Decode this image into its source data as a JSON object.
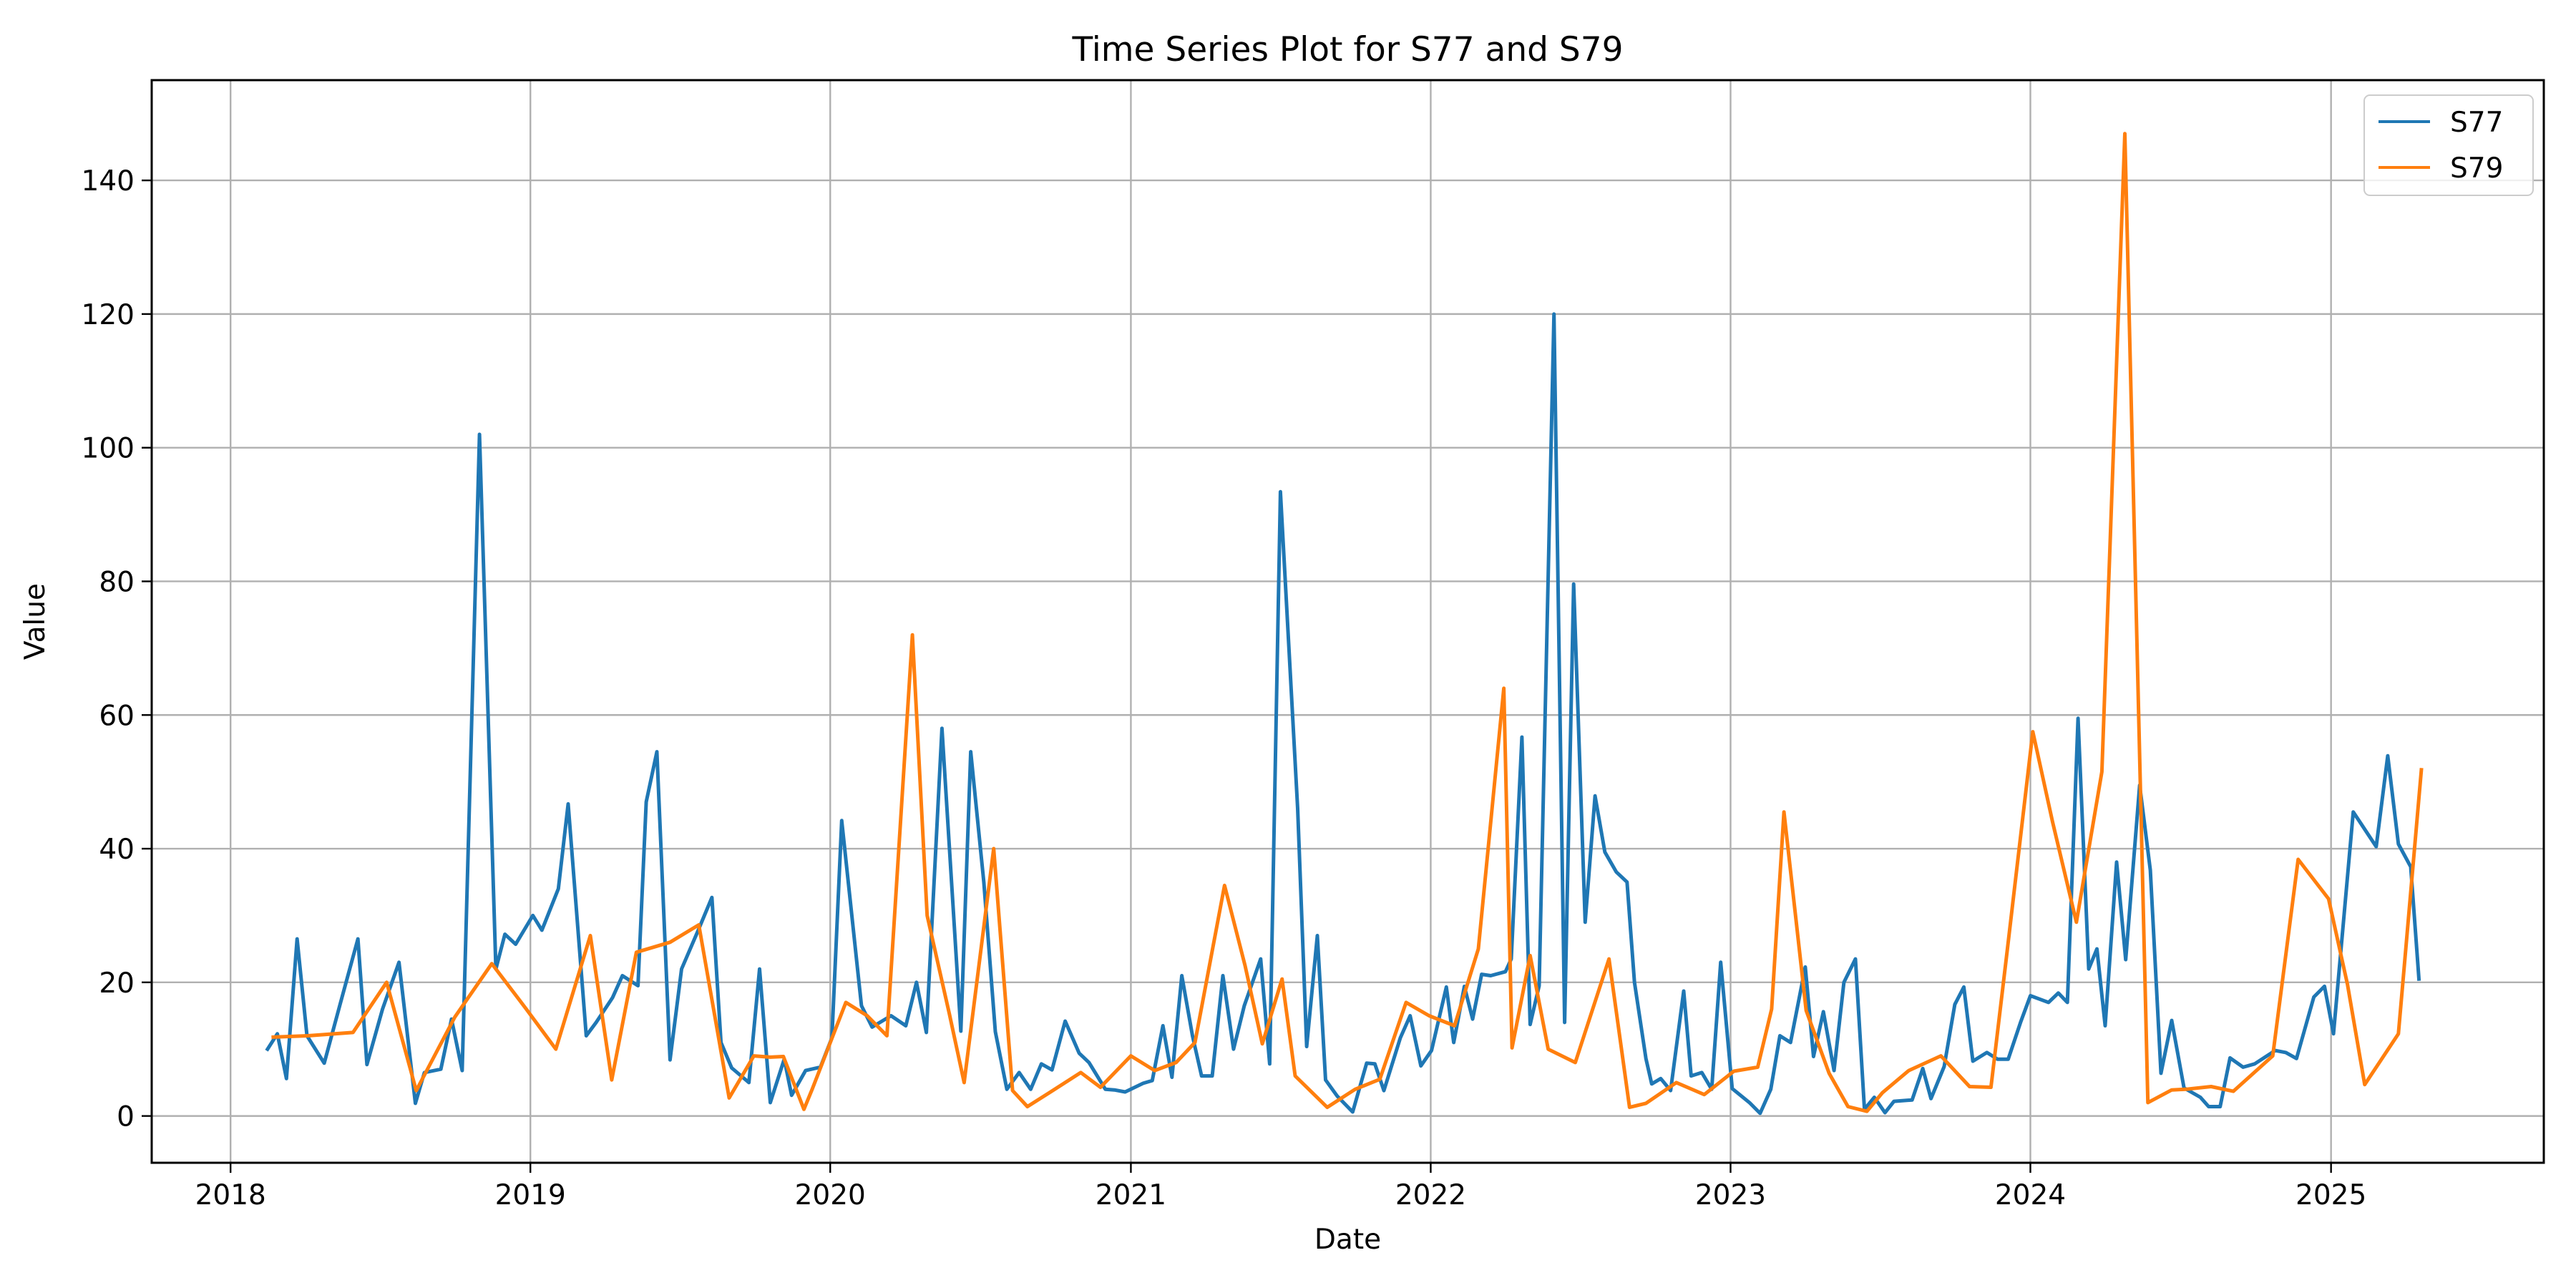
{
  "chart_data": {
    "type": "line",
    "title": "Time Series Plot for S77 and S79",
    "xlabel": "Date",
    "ylabel": "Value",
    "xlim": [
      "2017-09-27",
      "2025-09-17"
    ],
    "ylim": [
      -7,
      155
    ],
    "x_ticks": [
      "2018",
      "2019",
      "2020",
      "2021",
      "2022",
      "2023",
      "2024",
      "2025"
    ],
    "y_ticks": [
      0,
      20,
      40,
      60,
      80,
      100,
      120,
      140
    ],
    "grid": true,
    "legend": {
      "placement": "top-right"
    },
    "series": [
      {
        "name": "S77",
        "color": "#1f77b4",
        "points": [
          [
            "2018-02-15",
            10.0
          ],
          [
            "2018-02-27",
            12.3
          ],
          [
            "2018-03-10",
            5.6
          ],
          [
            "2018-03-23",
            26.5
          ],
          [
            "2018-04-04",
            12.0
          ],
          [
            "2018-04-25",
            7.9
          ],
          [
            "2018-05-15",
            17.0
          ],
          [
            "2018-06-05",
            26.5
          ],
          [
            "2018-06-16",
            7.7
          ],
          [
            "2018-07-05",
            16.0
          ],
          [
            "2018-07-25",
            23.0
          ],
          [
            "2018-08-14",
            1.9
          ],
          [
            "2018-08-25",
            6.5
          ],
          [
            "2018-09-14",
            7.0
          ],
          [
            "2018-09-27",
            14.5
          ],
          [
            "2018-10-10",
            6.8
          ],
          [
            "2018-10-31",
            102.0
          ],
          [
            "2018-11-20",
            22.0
          ],
          [
            "2018-12-01",
            27.2
          ],
          [
            "2018-12-14",
            25.7
          ],
          [
            "2019-01-04",
            30.0
          ],
          [
            "2019-01-15",
            27.8
          ],
          [
            "2019-02-04",
            34.0
          ],
          [
            "2019-02-16",
            46.7
          ],
          [
            "2019-03-10",
            12.0
          ],
          [
            "2019-03-22",
            14.0
          ],
          [
            "2019-04-11",
            17.7
          ],
          [
            "2019-04-23",
            21.0
          ],
          [
            "2019-05-12",
            19.5
          ],
          [
            "2019-05-22",
            47.0
          ],
          [
            "2019-06-04",
            54.5
          ],
          [
            "2019-06-20",
            8.4
          ],
          [
            "2019-07-04",
            22.0
          ],
          [
            "2019-07-25",
            28.0
          ],
          [
            "2019-08-10",
            32.7
          ],
          [
            "2019-08-21",
            11.0
          ],
          [
            "2019-09-03",
            7.2
          ],
          [
            "2019-09-24",
            5.0
          ],
          [
            "2019-10-07",
            22.0
          ],
          [
            "2019-10-20",
            2.0
          ],
          [
            "2019-11-06",
            8.5
          ],
          [
            "2019-11-15",
            3.1
          ],
          [
            "2019-12-02",
            6.8
          ],
          [
            "2019-12-20",
            7.3
          ],
          [
            "2020-01-03",
            11.7
          ],
          [
            "2020-01-15",
            44.2
          ],
          [
            "2020-02-08",
            16.5
          ],
          [
            "2020-02-21",
            13.3
          ],
          [
            "2020-03-15",
            15.0
          ],
          [
            "2020-04-02",
            13.5
          ],
          [
            "2020-04-15",
            20.0
          ],
          [
            "2020-04-27",
            12.5
          ],
          [
            "2020-05-16",
            58.0
          ],
          [
            "2020-06-08",
            12.7
          ],
          [
            "2020-06-20",
            54.5
          ],
          [
            "2020-07-06",
            35.0
          ],
          [
            "2020-07-20",
            12.6
          ],
          [
            "2020-08-03",
            4.0
          ],
          [
            "2020-08-18",
            6.5
          ],
          [
            "2020-09-01",
            4.0
          ],
          [
            "2020-09-14",
            7.8
          ],
          [
            "2020-09-27",
            6.9
          ],
          [
            "2020-10-13",
            14.2
          ],
          [
            "2020-10-30",
            9.4
          ],
          [
            "2020-11-11",
            8.0
          ],
          [
            "2020-12-01",
            4.0
          ],
          [
            "2020-12-12",
            3.9
          ],
          [
            "2020-12-25",
            3.6
          ],
          [
            "2021-01-16",
            4.9
          ],
          [
            "2021-01-27",
            5.3
          ],
          [
            "2021-02-09",
            13.5
          ],
          [
            "2021-02-20",
            5.8
          ],
          [
            "2021-03-04",
            21.0
          ],
          [
            "2021-03-17",
            12.0
          ],
          [
            "2021-03-28",
            6.0
          ],
          [
            "2021-04-10",
            6.0
          ],
          [
            "2021-04-23",
            21.0
          ],
          [
            "2021-05-06",
            10.0
          ],
          [
            "2021-05-19",
            16.5
          ],
          [
            "2021-06-08",
            23.5
          ],
          [
            "2021-06-19",
            7.8
          ],
          [
            "2021-07-02",
            93.4
          ],
          [
            "2021-07-23",
            46.0
          ],
          [
            "2021-08-03",
            10.4
          ],
          [
            "2021-08-16",
            27.0
          ],
          [
            "2021-08-26",
            5.4
          ],
          [
            "2021-09-09",
            3.0
          ],
          [
            "2021-09-28",
            0.6
          ],
          [
            "2021-10-15",
            7.9
          ],
          [
            "2021-10-25",
            7.8
          ],
          [
            "2021-11-05",
            3.8
          ],
          [
            "2021-11-25",
            11.7
          ],
          [
            "2021-12-07",
            15.0
          ],
          [
            "2021-12-20",
            7.5
          ],
          [
            "2022-01-02",
            9.8
          ],
          [
            "2022-01-20",
            19.3
          ],
          [
            "2022-01-29",
            11.0
          ],
          [
            "2022-02-11",
            19.4
          ],
          [
            "2022-02-21",
            14.5
          ],
          [
            "2022-03-04",
            21.2
          ],
          [
            "2022-03-15",
            21.0
          ],
          [
            "2022-04-02",
            21.6
          ],
          [
            "2022-04-09",
            23.5
          ],
          [
            "2022-04-22",
            56.7
          ],
          [
            "2022-05-02",
            13.7
          ],
          [
            "2022-05-13",
            19.5
          ],
          [
            "2022-05-31",
            120.0
          ],
          [
            "2022-06-13",
            14.0
          ],
          [
            "2022-06-24",
            79.6
          ],
          [
            "2022-07-08",
            29.0
          ],
          [
            "2022-07-20",
            47.9
          ],
          [
            "2022-08-01",
            39.5
          ],
          [
            "2022-08-15",
            36.5
          ],
          [
            "2022-08-28",
            35.0
          ],
          [
            "2022-09-06",
            20.0
          ],
          [
            "2022-09-20",
            8.6
          ],
          [
            "2022-09-27",
            4.8
          ],
          [
            "2022-10-08",
            5.6
          ],
          [
            "2022-10-20",
            3.8
          ],
          [
            "2022-11-05",
            18.7
          ],
          [
            "2022-11-14",
            6.0
          ],
          [
            "2022-11-27",
            6.5
          ],
          [
            "2022-12-09",
            4.0
          ],
          [
            "2022-12-20",
            23.0
          ],
          [
            "2023-01-03",
            4.1
          ],
          [
            "2023-01-24",
            2.0
          ],
          [
            "2023-02-06",
            0.4
          ],
          [
            "2023-02-19",
            4.0
          ],
          [
            "2023-03-02",
            12.0
          ],
          [
            "2023-03-15",
            11.0
          ],
          [
            "2023-04-02",
            22.3
          ],
          [
            "2023-04-12",
            8.9
          ],
          [
            "2023-04-24",
            15.6
          ],
          [
            "2023-05-07",
            6.8
          ],
          [
            "2023-05-19",
            20.0
          ],
          [
            "2023-06-02",
            23.5
          ],
          [
            "2023-06-13",
            1.0
          ],
          [
            "2023-06-25",
            2.8
          ],
          [
            "2023-07-08",
            0.5
          ],
          [
            "2023-07-19",
            2.2
          ],
          [
            "2023-08-10",
            2.4
          ],
          [
            "2023-08-23",
            7.1
          ],
          [
            "2023-09-02",
            2.6
          ],
          [
            "2023-09-18",
            7.4
          ],
          [
            "2023-10-01",
            16.7
          ],
          [
            "2023-10-12",
            19.3
          ],
          [
            "2023-10-23",
            8.2
          ],
          [
            "2023-11-09",
            9.5
          ],
          [
            "2023-11-22",
            8.5
          ],
          [
            "2023-12-05",
            8.5
          ],
          [
            "2023-12-20",
            14.0
          ],
          [
            "2024-01-01",
            18.0
          ],
          [
            "2024-01-23",
            17.0
          ],
          [
            "2024-02-04",
            18.4
          ],
          [
            "2024-02-15",
            17.0
          ],
          [
            "2024-02-28",
            59.5
          ],
          [
            "2024-03-12",
            22.0
          ],
          [
            "2024-03-22",
            25.0
          ],
          [
            "2024-04-01",
            13.5
          ],
          [
            "2024-04-15",
            38.0
          ],
          [
            "2024-04-26",
            23.4
          ],
          [
            "2024-05-13",
            49.5
          ],
          [
            "2024-05-26",
            36.8
          ],
          [
            "2024-06-08",
            6.4
          ],
          [
            "2024-06-21",
            14.3
          ],
          [
            "2024-07-06",
            4.2
          ],
          [
            "2024-07-26",
            2.8
          ],
          [
            "2024-08-05",
            1.4
          ],
          [
            "2024-08-19",
            1.4
          ],
          [
            "2024-08-31",
            8.7
          ],
          [
            "2024-09-16",
            7.3
          ],
          [
            "2024-09-30",
            7.8
          ],
          [
            "2024-10-15",
            9.0
          ],
          [
            "2024-10-25",
            9.8
          ],
          [
            "2024-11-07",
            9.5
          ],
          [
            "2024-11-20",
            8.6
          ],
          [
            "2024-12-11",
            17.8
          ],
          [
            "2024-12-24",
            19.4
          ],
          [
            "2025-01-04",
            12.3
          ],
          [
            "2025-01-28",
            45.5
          ],
          [
            "2025-02-25",
            40.3
          ],
          [
            "2025-03-11",
            53.9
          ],
          [
            "2025-03-24",
            40.7
          ],
          [
            "2025-04-08",
            37.3
          ],
          [
            "2025-04-18",
            20.5
          ]
        ]
      },
      {
        "name": "S79",
        "color": "#ff7f0e",
        "points": [
          [
            "2018-02-22",
            11.8
          ],
          [
            "2018-04-05",
            12.0
          ],
          [
            "2018-05-30",
            12.5
          ],
          [
            "2018-07-10",
            20.0
          ],
          [
            "2018-08-15",
            3.8
          ],
          [
            "2018-10-01",
            14.8
          ],
          [
            "2018-11-15",
            22.8
          ],
          [
            "2018-12-27",
            16.0
          ],
          [
            "2019-02-01",
            10.0
          ],
          [
            "2019-03-15",
            27.0
          ],
          [
            "2019-04-10",
            5.4
          ],
          [
            "2019-05-10",
            24.5
          ],
          [
            "2019-06-20",
            26.0
          ],
          [
            "2019-07-25",
            28.6
          ],
          [
            "2019-08-31",
            2.7
          ],
          [
            "2019-09-30",
            9.0
          ],
          [
            "2019-10-20",
            8.8
          ],
          [
            "2019-11-05",
            8.9
          ],
          [
            "2019-11-30",
            1.0
          ],
          [
            "2019-12-10",
            4.0
          ],
          [
            "2020-01-20",
            17.0
          ],
          [
            "2020-02-15",
            15.0
          ],
          [
            "2020-03-10",
            12.0
          ],
          [
            "2020-04-10",
            72.0
          ],
          [
            "2020-04-28",
            30.0
          ],
          [
            "2020-05-25",
            15.3
          ],
          [
            "2020-06-12",
            5.0
          ],
          [
            "2020-07-18",
            40.0
          ],
          [
            "2020-08-10",
            3.8
          ],
          [
            "2020-08-28",
            1.4
          ],
          [
            "2020-09-24",
            3.5
          ],
          [
            "2020-11-01",
            6.5
          ],
          [
            "2020-11-25",
            4.3
          ],
          [
            "2021-01-01",
            9.0
          ],
          [
            "2021-01-30",
            6.8
          ],
          [
            "2021-02-25",
            8.0
          ],
          [
            "2021-03-20",
            11.0
          ],
          [
            "2021-04-25",
            34.5
          ],
          [
            "2021-05-20",
            22.5
          ],
          [
            "2021-06-10",
            10.8
          ],
          [
            "2021-07-04",
            20.5
          ],
          [
            "2021-07-20",
            6.0
          ],
          [
            "2021-08-28",
            1.3
          ],
          [
            "2021-10-01",
            4.0
          ],
          [
            "2021-10-31",
            5.5
          ],
          [
            "2021-12-02",
            17.0
          ],
          [
            "2021-12-30",
            15.0
          ],
          [
            "2022-01-30",
            13.5
          ],
          [
            "2022-02-28",
            25.0
          ],
          [
            "2022-03-31",
            64.0
          ],
          [
            "2022-04-10",
            10.2
          ],
          [
            "2022-05-02",
            24.0
          ],
          [
            "2022-05-24",
            10.0
          ],
          [
            "2022-06-26",
            8.0
          ],
          [
            "2022-08-06",
            23.5
          ],
          [
            "2022-08-31",
            1.3
          ],
          [
            "2022-09-20",
            1.9
          ],
          [
            "2022-10-27",
            5.0
          ],
          [
            "2022-11-30",
            3.2
          ],
          [
            "2023-01-05",
            6.7
          ],
          [
            "2023-02-03",
            7.3
          ],
          [
            "2023-02-20",
            16.0
          ],
          [
            "2023-03-07",
            45.5
          ],
          [
            "2023-04-03",
            15.8
          ],
          [
            "2023-05-01",
            6.4
          ],
          [
            "2023-05-24",
            1.4
          ],
          [
            "2023-06-16",
            0.7
          ],
          [
            "2023-07-05",
            3.5
          ],
          [
            "2023-08-06",
            6.8
          ],
          [
            "2023-09-14",
            9.0
          ],
          [
            "2023-10-19",
            4.4
          ],
          [
            "2023-11-14",
            4.3
          ],
          [
            "2023-12-04",
            25.0
          ],
          [
            "2024-01-04",
            57.5
          ],
          [
            "2024-01-28",
            44.0
          ],
          [
            "2024-02-26",
            29.0
          ],
          [
            "2024-03-28",
            51.5
          ],
          [
            "2024-04-25",
            147.0
          ],
          [
            "2024-05-23",
            2.0
          ],
          [
            "2024-06-21",
            3.9
          ],
          [
            "2024-07-08",
            4.0
          ],
          [
            "2024-08-08",
            4.4
          ],
          [
            "2024-09-04",
            3.7
          ],
          [
            "2024-10-22",
            9.0
          ],
          [
            "2024-11-22",
            38.4
          ],
          [
            "2024-12-29",
            32.5
          ],
          [
            "2025-01-21",
            19.7
          ],
          [
            "2025-02-11",
            4.7
          ],
          [
            "2025-03-24",
            12.3
          ],
          [
            "2025-04-21",
            51.8
          ]
        ]
      }
    ]
  }
}
